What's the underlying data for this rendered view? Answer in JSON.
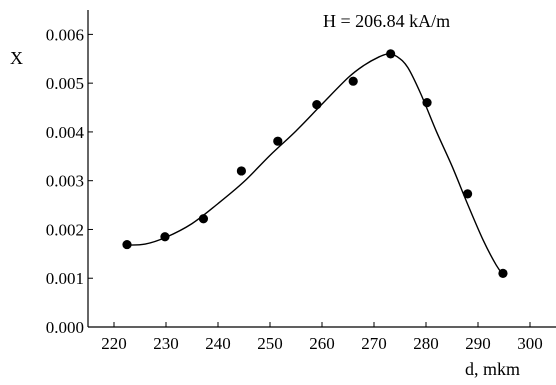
{
  "chart_data": {
    "type": "scatter",
    "annotation": "H = 206.84 kA/m",
    "xlabel": "d, mkm",
    "ylabel": "X",
    "xlim": [
      215,
      305
    ],
    "ylim": [
      0,
      0.0065
    ],
    "x_ticks": [
      220,
      230,
      240,
      250,
      260,
      270,
      280,
      290,
      300
    ],
    "x_tick_labels": [
      "220",
      "230",
      "240",
      "250",
      "260",
      "270",
      "280",
      "290",
      "300"
    ],
    "y_ticks": [
      0,
      0.001,
      0.002,
      0.003,
      0.004,
      0.005,
      0.006
    ],
    "y_tick_labels": [
      "0.000",
      "0.001",
      "0.002",
      "0.003",
      "0.004",
      "0.005",
      "0.006"
    ],
    "grid": false,
    "series": [
      {
        "kind": "points",
        "x": [
          222.5,
          229.8,
          237.2,
          244.5,
          251.5,
          259.0,
          266.0,
          273.2,
          280.2,
          288.0,
          294.8
        ],
        "y": [
          0.00169,
          0.00185,
          0.00222,
          0.0032,
          0.00381,
          0.00456,
          0.00504,
          0.0056,
          0.0046,
          0.00273,
          0.0011
        ],
        "color": "#000000"
      },
      {
        "kind": "fit-curve",
        "x": [
          222.5,
          226.0,
          230.0,
          235.0,
          240.0,
          245.0,
          250.0,
          255.0,
          260.0,
          265.0,
          268.0,
          271.0,
          272.8,
          274.5,
          276.5,
          279.0,
          282.0,
          285.0,
          288.0,
          291.0,
          293.5,
          295.0
        ],
        "y": [
          0.00168,
          0.0017,
          0.00184,
          0.00212,
          0.00253,
          0.00298,
          0.00352,
          0.00402,
          0.00457,
          0.00511,
          0.00536,
          0.00554,
          0.0056,
          0.00554,
          0.00532,
          0.00478,
          0.00401,
          0.0033,
          0.00252,
          0.00178,
          0.00127,
          0.00105
        ],
        "color": "#000000"
      }
    ]
  }
}
